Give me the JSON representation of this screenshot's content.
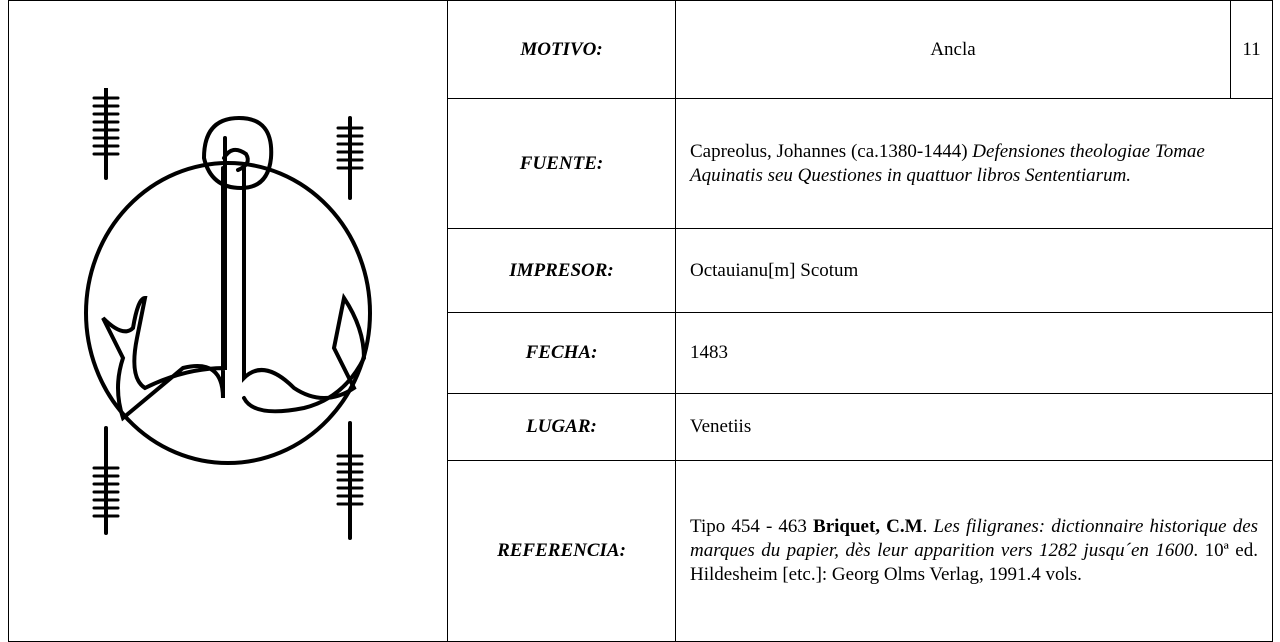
{
  "rows": [
    {
      "label": "MOTIVO:",
      "value": [
        {
          "text": "Ancla",
          "style": "normal"
        }
      ],
      "align": "center",
      "number": "11"
    },
    {
      "label": "FUENTE:",
      "value": [
        {
          "text": "Capreolus, Johannes (ca.1380-1444) ",
          "style": "normal"
        },
        {
          "text": "Defensiones theologiae Tomae Aquinatis seu Questiones in quattuor libros Sententiarum.",
          "style": "italic"
        }
      ],
      "align": "left"
    },
    {
      "label": "IMPRESOR:",
      "value": [
        {
          "text": "Octauianu[m] Scotum",
          "style": "normal"
        }
      ],
      "align": "left"
    },
    {
      "label": "FECHA:",
      "value": [
        {
          "text": "1483",
          "style": "normal"
        }
      ],
      "align": "left"
    },
    {
      "label": "LUGAR:",
      "value": [
        {
          "text": "Venetiis",
          "style": "normal"
        }
      ],
      "align": "left"
    },
    {
      "label": "REFERENCIA:",
      "value": [
        {
          "text": "Tipo 454 - 463 ",
          "style": "normal"
        },
        {
          "text": "Briquet, C.M",
          "style": "bold"
        },
        {
          "text": ". ",
          "style": "normal"
        },
        {
          "text": "Les filigranes: dictionnaire historique des marques du papier, dès leur apparition vers 1282 jusqu´en 1600",
          "style": "italic"
        },
        {
          "text": ". 10ª ed. Hildesheim [etc.]: Georg Olms Verlag, 1991.4 vols.",
          "style": "normal"
        }
      ],
      "align": "justify"
    }
  ]
}
